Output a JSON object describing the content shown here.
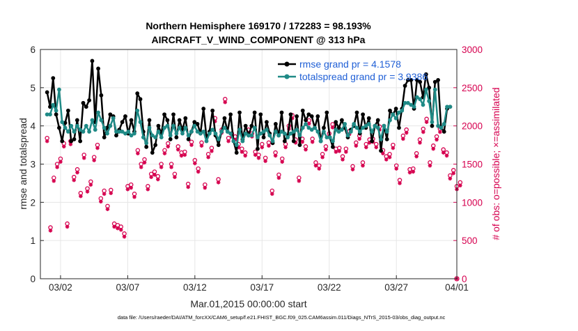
{
  "colors": {
    "rmse": "#000000",
    "spread": "#1f8a86",
    "obs": "#d6004f",
    "grid": "#e6e6e6",
    "axis": "#262626",
    "legend_text": "#1f5fd6"
  },
  "chart_data": {
    "type": "line",
    "title_line1": "Northern Hemisphere 169170 / 172283 = 98.193%",
    "title_line2": "AIRCRAFT_V_WIND_COMPONENT @ 313 hPa",
    "xlabel": "Mar.01,2015 00:00:00 start",
    "ylabel": "rmse and totalspread",
    "ylabel_right": "# of obs: o=possible; ×=assimilated",
    "footer": "data file: /Users/raeder/DAI/ATM_forcXX/CAM6_setup/f.e21.FHIST_BGC.f09_025.CAM6assim.011/Diags_NTrS_2015-03/obs_diag_output.nc",
    "xlim": [
      0.5,
      31.5
    ],
    "ylim": [
      0,
      6
    ],
    "ylim_right": [
      0,
      3000
    ],
    "x_ticks": [
      {
        "value": 2,
        "label": "03/02"
      },
      {
        "value": 7,
        "label": "03/07"
      },
      {
        "value": 12,
        "label": "03/12"
      },
      {
        "value": 17,
        "label": "03/17"
      },
      {
        "value": 22,
        "label": "03/22"
      },
      {
        "value": 27,
        "label": "03/27"
      },
      {
        "value": 32,
        "label": "04/01"
      }
    ],
    "y_ticks": [
      "0",
      "1",
      "2",
      "3",
      "4",
      "5",
      "6"
    ],
    "y_ticks_right": [
      "0",
      "500",
      "1000",
      "1500",
      "2000",
      "2500",
      "3000"
    ],
    "legend": [
      {
        "label": "rmse grand pr = 4.1578",
        "series": "rmse"
      },
      {
        "label": "totalspread grand pr = 3.9386",
        "series": "spread"
      }
    ],
    "rmse": [
      4.88,
      4.5,
      5.25,
      4.3,
      3.95,
      3.6,
      4.08,
      4.4,
      3.6,
      3.65,
      4.15,
      3.6,
      4.6,
      4.5,
      4.67,
      5.7,
      4.1,
      5.5,
      4.8,
      3.7,
      3.95,
      4.3,
      4.25,
      3.75,
      3.9,
      4.1,
      4.25,
      3.8,
      4.15,
      3.85,
      4.85,
      4.7,
      3.85,
      3.45,
      4.15,
      3.3,
      3.5,
      4.0,
      3.8,
      4.3,
      4.15,
      3.65,
      4.3,
      3.7,
      4.15,
      3.9,
      4.2,
      3.65,
      3.85,
      4.1,
      4.05,
      3.8,
      4.45,
      3.7,
      3.85,
      4.4,
      3.75,
      3.5,
      3.85,
      4.2,
      3.85,
      4.3,
      3.6,
      3.3,
      4.35,
      3.65,
      4.0,
      3.75,
      4.0,
      4.35,
      3.4,
      4.3,
      3.7,
      4.1,
      3.8,
      3.55,
      4.05,
      3.75,
      4.35,
      3.6,
      3.75,
      4.3,
      3.6,
      4.25,
      3.5,
      4.4,
      4.15,
      4.3,
      4.25,
      3.95,
      4.25,
      3.6,
      3.95,
      4.35,
      3.7,
      3.45,
      4.1,
      3.95,
      4.15,
      3.95,
      3.7,
      3.9,
      4.0,
      4.35,
      3.8,
      4.3,
      3.95,
      4.2,
      3.6,
      4.0,
      4.15,
      3.35,
      4.0,
      3.65,
      4.4,
      4.3,
      4.45,
      3.95,
      4.45,
      5.05,
      5.2,
      5.2,
      4.45,
      5.2,
      5.15,
      4.75,
      5.35,
      5.0,
      4.0,
      5.15,
      5.2,
      3.95,
      3.85,
      4.45,
      4.5
    ],
    "spread": [
      4.3,
      4.3,
      4.55,
      4.4,
      4.95,
      4.1,
      3.95,
      3.85,
      4.0,
      3.85,
      4.0,
      3.9,
      3.85,
      4.0,
      3.85,
      4.15,
      3.9,
      4.35,
      4.15,
      3.95,
      3.8,
      4.0,
      4.2,
      3.85,
      3.85,
      3.85,
      3.8,
      3.85,
      3.75,
      3.8,
      4.4,
      4.1,
      3.7,
      3.55,
      3.95,
      3.75,
      3.7,
      3.85,
      3.7,
      3.95,
      4.0,
      3.75,
      4.0,
      3.8,
      3.95,
      3.8,
      3.95,
      3.75,
      3.85,
      4.0,
      3.85,
      3.8,
      3.85,
      3.6,
      3.8,
      3.9,
      3.8,
      3.65,
      3.85,
      3.95,
      3.85,
      3.8,
      3.6,
      3.5,
      3.9,
      3.6,
      3.8,
      3.75,
      3.75,
      3.95,
      3.7,
      3.8,
      3.85,
      3.9,
      3.75,
      3.6,
      3.85,
      3.75,
      3.85,
      3.8,
      3.7,
      3.8,
      3.85,
      3.9,
      3.75,
      3.95,
      4.05,
      3.95,
      3.9,
      3.95,
      3.85,
      3.6,
      3.85,
      3.7,
      3.7,
      3.6,
      3.9,
      3.85,
      3.9,
      4.05,
      3.75,
      3.85,
      4.05,
      3.95,
      3.85,
      3.95,
      4.0,
      4.05,
      3.85,
      4.0,
      3.95,
      3.65,
      4.0,
      3.85,
      4.15,
      4.3,
      4.2,
      4.35,
      4.4,
      4.6,
      4.6,
      4.55,
      4.5,
      4.75,
      4.7,
      4.55,
      4.95,
      4.65,
      4.1,
      4.95,
      4.0,
      3.95,
      4.05,
      4.5,
      4.5
    ],
    "obs_groups": [
      {
        "offset": 0.0,
        "levels": [
          1840,
          1570,
          1330,
          1180,
          1050,
          720,
          1210,
          1500,
          1400,
          1770,
          1650,
          1550,
          1630,
          1950,
          1860,
          1950,
          1760,
          1650,
          2000,
          1830,
          1520,
          1900,
          1600,
          1780,
          1820,
          1680,
          1480,
          1430,
          1960,
          1860,
          1350
        ]
      },
      {
        "offset": 0.25,
        "levels": [
          670,
          1770,
          1430,
          1270,
          1150,
          700,
          1230,
          1560,
          1340,
          1500,
          1660,
          1440,
          1710,
          2350,
          1760,
          1900,
          1580,
          1360,
          2140,
          1730,
          1480,
          2020,
          1700,
          1870,
          1830,
          1600,
          1290,
          1440,
          2090,
          1960,
          1420
        ]
      },
      {
        "offset": 0.5,
        "levels": [
          1320,
          720,
          1120,
          1590,
          950,
          680,
          1110,
          1210,
          1500,
          1370,
          1240,
          1780,
          2100,
          1840,
          1700,
          1660,
          1780,
          1570,
          1820,
          2070,
          1630,
          1700,
          1930,
          1520,
          1760,
          1630,
          1870,
          1640,
          1520,
          1690,
          1210
        ]
      },
      {
        "offset": 0.75,
        "levels": [
          1500,
          1800,
          1620,
          1750,
          1160,
          590,
          1680,
          1370,
          1680,
          1730,
          1790,
          1230,
          1300,
          1900,
          1650,
          1620,
          1150,
          1760,
          1320,
          1830,
          1730,
          1710,
          1470,
          1760,
          1990,
          1750,
          1950,
          1820,
          1740,
          1650,
          1260
        ]
      }
    ]
  }
}
